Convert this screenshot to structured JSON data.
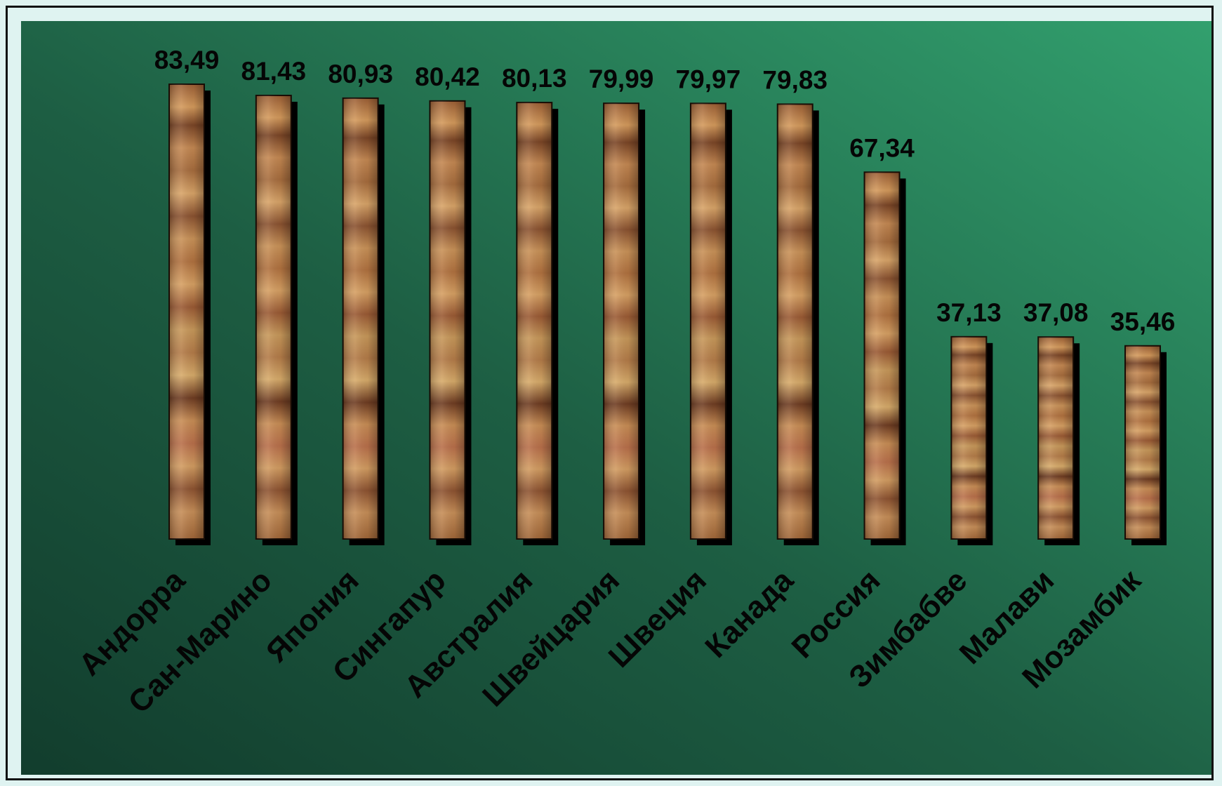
{
  "chart_data": {
    "type": "bar",
    "title": "",
    "xlabel": "",
    "ylabel": "",
    "categories": [
      "Андорра",
      "Сан-Марино",
      "Япония",
      "Сингапур",
      "Австралия",
      "Швейцария",
      "Швеция",
      "Канада",
      "Россия",
      "Зимбабве",
      "Малави",
      "Мозамбик"
    ],
    "values": [
      83.49,
      81.43,
      80.93,
      80.42,
      80.13,
      79.99,
      79.97,
      79.83,
      67.34,
      37.13,
      37.08,
      35.46
    ],
    "value_labels": [
      "83,49",
      "81,43",
      "80,93",
      "80,42",
      "80,13",
      "79,99",
      "79,97",
      "79,83",
      "67,34",
      "37,13",
      "37,08",
      "35,46"
    ],
    "ylim": [
      0,
      83.49
    ],
    "grid": false,
    "legend": "none",
    "colors": {
      "plot_background_dark": "#123d2d",
      "plot_background_light": "#2f9a6a",
      "frame_background": "#dff3f1",
      "bar_fill": "#a86a3c",
      "bar_shadow": "#000000",
      "text": "#050505"
    }
  }
}
